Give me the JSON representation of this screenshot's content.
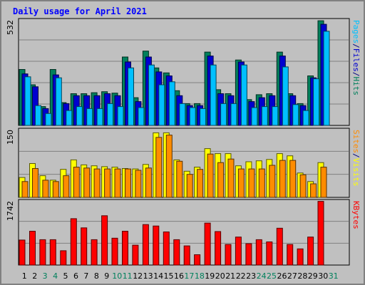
{
  "chart_data": {
    "type": "bar",
    "title": "Daily usage for April 2021",
    "categories": [
      "1",
      "2",
      "3",
      "4",
      "5",
      "6",
      "7",
      "8",
      "9",
      "10",
      "11",
      "12",
      "13",
      "14",
      "15",
      "16",
      "17",
      "18",
      "19",
      "20",
      "21",
      "22",
      "23",
      "24",
      "25",
      "26",
      "27",
      "28",
      "29",
      "30",
      "31"
    ],
    "weekend_days": [
      3,
      4,
      10,
      11,
      17,
      18,
      24,
      25,
      31
    ],
    "panels": [
      {
        "id": "pages_files_hits",
        "max_label": "532",
        "ymax": 532,
        "series": [
          {
            "name": "Hits",
            "color": "#00805c",
            "values": [
              282,
              205,
              95,
              282,
              115,
              160,
              160,
              165,
              170,
              163,
              345,
              140,
              375,
              290,
              265,
              175,
              110,
              110,
              370,
              180,
              160,
              330,
              130,
              155,
              160,
              370,
              160,
              110,
              250,
              528,
              0
            ]
          },
          {
            "name": "Files",
            "color": "#0000d0",
            "values": [
              260,
              195,
              85,
              255,
              110,
              150,
              150,
              150,
              160,
              150,
              320,
              120,
              345,
              270,
              250,
              150,
              100,
              100,
              350,
              160,
              150,
              320,
              120,
              140,
              150,
              350,
              150,
              100,
              240,
              510,
              0
            ]
          },
          {
            "name": "Pages",
            "color": "#00c0ff",
            "values": [
              245,
              100,
              60,
              240,
              75,
              95,
              85,
              85,
              110,
              95,
              290,
              90,
              305,
              205,
              220,
              110,
              90,
              85,
              305,
              110,
              110,
              305,
              90,
              95,
              95,
              295,
              105,
              75,
              235,
              475,
              0
            ]
          }
        ],
        "labels": [
          {
            "text": "Pages",
            "color": "#00c0ff"
          },
          {
            "text": "/",
            "color": "#000080"
          },
          {
            "text": "Files",
            "color": "#0000d0"
          },
          {
            "text": "/",
            "color": "#000080"
          },
          {
            "text": "Hits",
            "color": "#00805c"
          }
        ]
      },
      {
        "id": "sites_visits",
        "max_label": "150",
        "ymax": 150,
        "series": [
          {
            "name": "Visits",
            "color": "#ffff00",
            "values": [
              44,
              75,
              48,
              38,
              62,
              83,
              72,
              70,
              68,
              67,
              64,
              63,
              73,
              143,
              143,
              83,
              58,
              67,
              108,
              97,
              97,
              70,
              79,
              81,
              84,
              97,
              92,
              54,
              35,
              77,
              0
            ]
          },
          {
            "name": "Sites",
            "color": "#ff8c00",
            "values": [
              35,
              64,
              38,
              35,
              48,
              67,
              65,
              63,
              63,
              63,
              63,
              60,
              65,
              133,
              138,
              80,
              51,
              62,
              96,
              77,
              85,
              63,
              63,
              63,
              71,
              82,
              82,
              50,
              30,
              67,
              0
            ]
          }
        ],
        "labels": [
          {
            "text": "Sites",
            "color": "#ff8c00"
          },
          {
            "text": "/",
            "color": "#000080"
          },
          {
            "text": "Visits",
            "color": "#ffff00"
          }
        ]
      },
      {
        "id": "kbytes",
        "max_label": "1742",
        "ymax": 1742,
        "series": [
          {
            "name": "KBytes",
            "color": "#ff0000",
            "values": [
              680,
              920,
              690,
              690,
              390,
              1260,
              1010,
              690,
              1340,
              730,
              920,
              540,
              1100,
              1060,
              900,
              690,
              520,
              280,
              1140,
              910,
              560,
              760,
              580,
              690,
              630,
              1000,
              560,
              440,
              760,
              1730,
              0
            ]
          }
        ],
        "labels": [
          {
            "text": "KBytes",
            "color": "#ff0000"
          }
        ]
      }
    ]
  }
}
